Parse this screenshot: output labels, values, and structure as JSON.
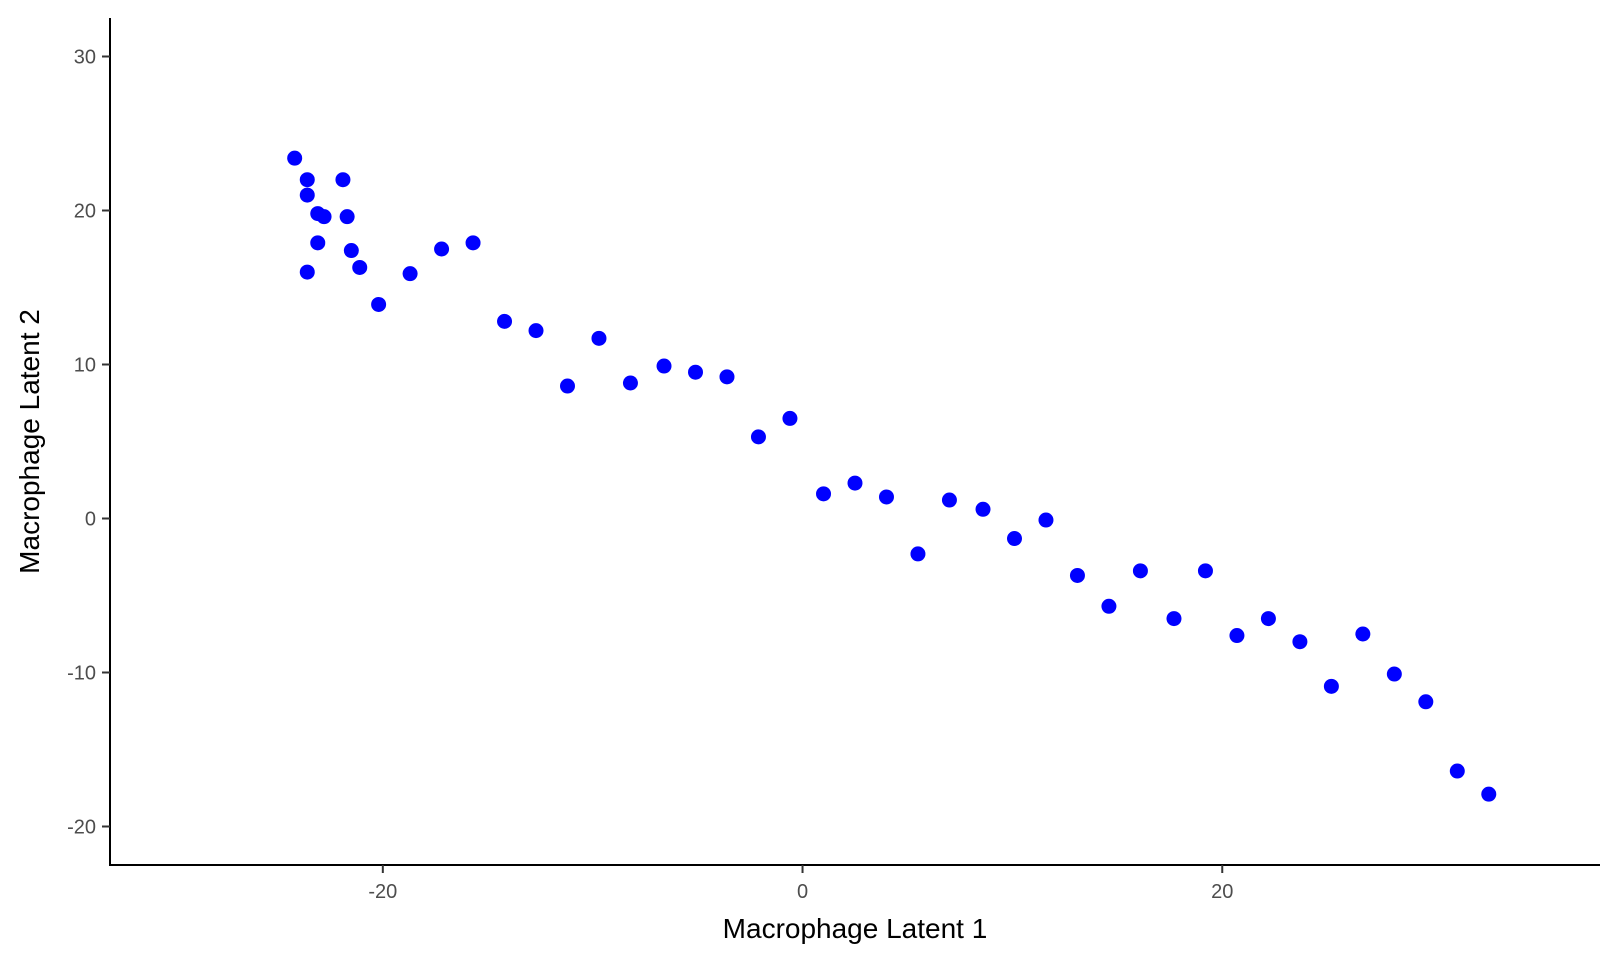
{
  "chart_data": {
    "type": "scatter",
    "title": "",
    "xlabel": "Macrophage Latent 1",
    "ylabel": "Macrophage Latent 2",
    "xlim": [
      -33,
      38
    ],
    "ylim": [
      -22.5,
      32.5
    ],
    "xticks": [
      -20,
      0,
      20
    ],
    "xtick_labels": [
      "-20",
      "0",
      "20"
    ],
    "yticks": [
      -20,
      -10,
      0,
      10,
      20,
      30
    ],
    "ytick_labels": [
      "-20",
      "-10",
      "0",
      "10",
      "20",
      "30"
    ],
    "grid": false,
    "point_color": "#0000ff",
    "series": [
      {
        "points": [
          [
            -24.2,
            23.4
          ],
          [
            -23.6,
            22.0
          ],
          [
            -23.6,
            21.0
          ],
          [
            -23.1,
            19.8
          ],
          [
            -22.8,
            19.6
          ],
          [
            -23.1,
            17.9
          ],
          [
            -23.6,
            16.0
          ],
          [
            -21.9,
            22.0
          ],
          [
            -21.7,
            19.6
          ],
          [
            -21.5,
            17.4
          ],
          [
            -21.1,
            16.3
          ],
          [
            -20.2,
            13.9
          ],
          [
            -18.7,
            15.9
          ],
          [
            -17.2,
            17.5
          ],
          [
            -15.7,
            17.9
          ],
          [
            -14.2,
            12.8
          ],
          [
            -12.7,
            12.2
          ],
          [
            -11.2,
            8.6
          ],
          [
            -9.7,
            11.7
          ],
          [
            -8.2,
            8.8
          ],
          [
            -6.6,
            9.9
          ],
          [
            -5.1,
            9.5
          ],
          [
            -3.6,
            9.2
          ],
          [
            -2.1,
            5.3
          ],
          [
            -0.6,
            6.5
          ],
          [
            1.0,
            1.6
          ],
          [
            2.5,
            2.3
          ],
          [
            4.0,
            1.4
          ],
          [
            5.5,
            -2.3
          ],
          [
            7.0,
            1.2
          ],
          [
            8.6,
            0.6
          ],
          [
            10.1,
            -1.3
          ],
          [
            11.6,
            -0.1
          ],
          [
            13.1,
            -3.7
          ],
          [
            14.6,
            -5.7
          ],
          [
            16.1,
            -3.4
          ],
          [
            17.7,
            -6.5
          ],
          [
            19.2,
            -3.4
          ],
          [
            20.7,
            -7.6
          ],
          [
            22.2,
            -6.5
          ],
          [
            23.7,
            -8.0
          ],
          [
            25.2,
            -10.9
          ],
          [
            26.7,
            -7.5
          ],
          [
            28.2,
            -10.1
          ],
          [
            29.7,
            -11.9
          ],
          [
            31.2,
            -16.4
          ],
          [
            32.7,
            -17.9
          ]
        ]
      }
    ]
  }
}
